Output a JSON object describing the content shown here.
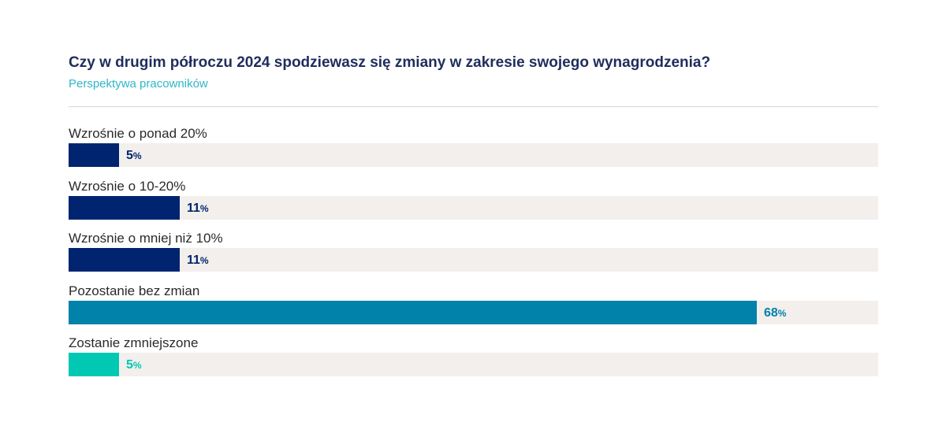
{
  "header": {
    "title": "Czy w drugim półroczu 2024 spodziewasz się zmiany w zakresie swojego wynagrodzenia?",
    "subtitle": "Perspektywa pracowników"
  },
  "colors": {
    "dark_navy": "#00246f",
    "teal_blue": "#0082ab",
    "mint": "#00c8b3",
    "track": "#f2efec"
  },
  "chart_data": {
    "type": "bar",
    "orientation": "horizontal",
    "title": "Czy w drugim półroczu 2024 spodziewasz się zmiany w zakresie swojego wynagrodzenia?",
    "subtitle": "Perspektywa pracowników",
    "categories": [
      "Wzrośnie o ponad 20%",
      "Wzrośnie o 10-20%",
      "Wzrośnie o mniej niż 10%",
      "Pozostanie bez zmian",
      "Zostanie zmniejszone"
    ],
    "values": [
      5,
      11,
      11,
      68,
      5
    ],
    "unit": "%",
    "bar_colors": [
      "#00246f",
      "#00246f",
      "#00246f",
      "#0082ab",
      "#00c8b3"
    ],
    "xlim": [
      0,
      80
    ],
    "grid": false,
    "legend": "none"
  }
}
